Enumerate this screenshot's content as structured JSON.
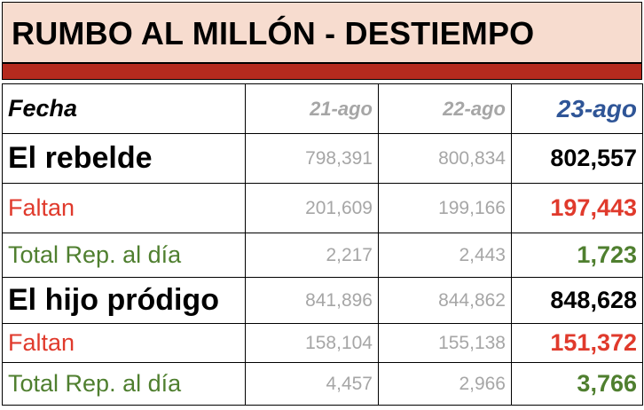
{
  "title": "RUMBO AL MILLÓN - DESTIEMPO",
  "colors": {
    "title_bg": "#f7dccf",
    "title_bar": "#b52a1e",
    "date_current": "#2f5597",
    "faltan": "#e03a2c",
    "total": "#4f7f2f",
    "old": "#a6a6a6"
  },
  "header": {
    "label": "Fecha",
    "dates": [
      "21-ago",
      "22-ago",
      "23-ago"
    ]
  },
  "songs": [
    {
      "name": "El rebelde",
      "views": [
        "798,391",
        "800,834",
        "802,557"
      ],
      "faltan_label": "Faltan",
      "faltan": [
        "201,609",
        "199,166",
        "197,443"
      ],
      "total_label": "Total Rep. al día",
      "total": [
        "2,217",
        "2,443",
        "1,723"
      ]
    },
    {
      "name": "El hijo pródigo",
      "views": [
        "841,896",
        "844,862",
        "848,628"
      ],
      "faltan_label": "Faltan",
      "faltan": [
        "158,104",
        "155,138",
        "151,372"
      ],
      "total_label": "Total Rep. al día",
      "total": [
        "4,457",
        "2,966",
        "3,766"
      ]
    }
  ]
}
